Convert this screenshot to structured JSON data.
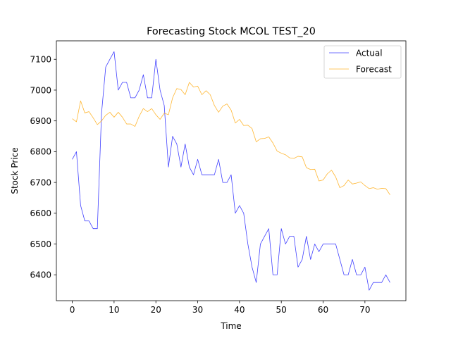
{
  "chart_data": {
    "type": "line",
    "title": "Forecasting Stock MCOL TEST_20",
    "xlabel": "Time",
    "ylabel": "Stock Price",
    "xlim": [
      -3.8,
      79.8
    ],
    "ylim": [
      6316,
      7160
    ],
    "xticks": [
      0,
      10,
      20,
      30,
      40,
      50,
      60,
      70
    ],
    "yticks": [
      6400,
      6500,
      6600,
      6700,
      6800,
      6900,
      7000,
      7100
    ],
    "grid": false,
    "legend_position": "top-right",
    "series": [
      {
        "name": "Actual",
        "color": "#0000ff",
        "values": [
          6775,
          6800,
          6625,
          6575,
          6575,
          6550,
          6550,
          6925,
          7075,
          7100,
          7125,
          7000,
          7025,
          7025,
          6975,
          6975,
          7000,
          7050,
          6975,
          6975,
          7100,
          7000,
          6950,
          6750,
          6850,
          6825,
          6750,
          6825,
          6750,
          6725,
          6775,
          6725,
          6725,
          6725,
          6725,
          6775,
          6700,
          6700,
          6725,
          6600,
          6625,
          6600,
          6500,
          6425,
          6375,
          6500,
          6525,
          6550,
          6400,
          6400,
          6550,
          6500,
          6525,
          6525,
          6425,
          6450,
          6525,
          6450,
          6500,
          6475,
          6500,
          6500,
          6500,
          6500,
          6450,
          6400,
          6400,
          6450,
          6400,
          6400,
          6425,
          6350,
          6375,
          6375,
          6375,
          6400,
          6375
        ]
      },
      {
        "name": "Forecast",
        "color": "#ffa500",
        "values": [
          6907,
          6897,
          6965,
          6926,
          6930,
          6910,
          6888,
          6900,
          6918,
          6928,
          6912,
          6928,
          6912,
          6890,
          6890,
          6882,
          6915,
          6940,
          6930,
          6940,
          6920,
          6905,
          6925,
          6920,
          6975,
          7005,
          7002,
          6985,
          7025,
          7010,
          7013,
          6985,
          6998,
          6985,
          6950,
          6928,
          6948,
          6955,
          6935,
          6893,
          6905,
          6885,
          6886,
          6875,
          6832,
          6842,
          6843,
          6848,
          6828,
          6802,
          6795,
          6790,
          6780,
          6778,
          6785,
          6783,
          6748,
          6742,
          6743,
          6705,
          6708,
          6728,
          6740,
          6718,
          6683,
          6690,
          6708,
          6695,
          6698,
          6702,
          6690,
          6680,
          6683,
          6678,
          6681,
          6680,
          6660
        ]
      }
    ]
  }
}
